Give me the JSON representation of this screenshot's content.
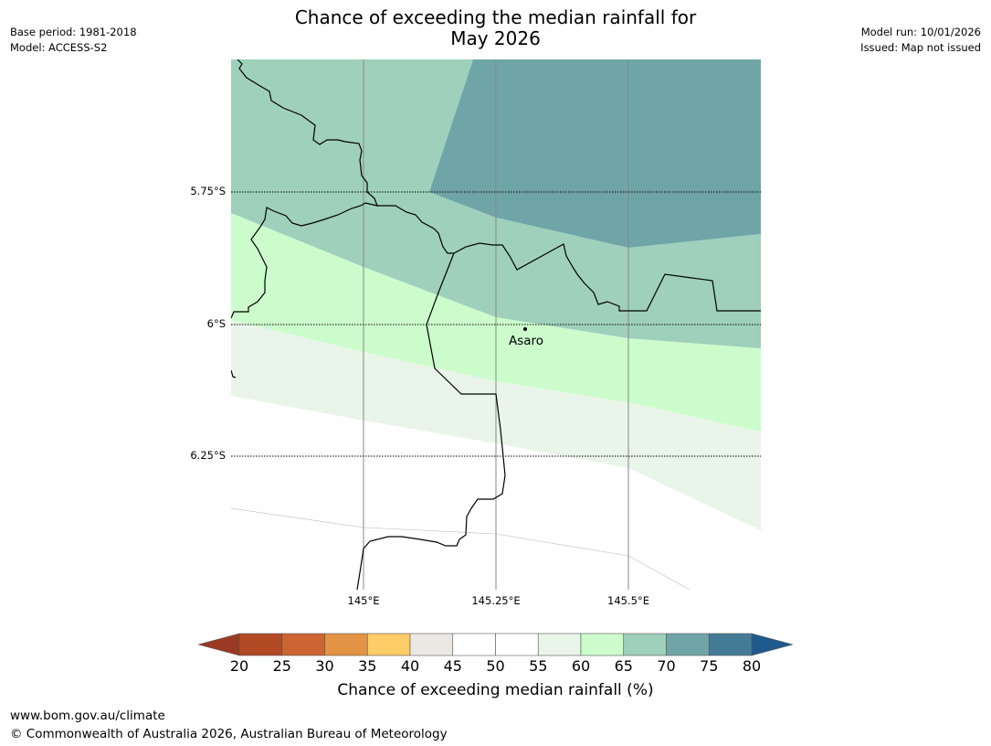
{
  "title": {
    "line1": "Chance of exceeding the median rainfall for",
    "line2": "May 2026"
  },
  "meta_left": {
    "base_period": "Base period: 1981-2018",
    "model": "Model: ACCESS-S2"
  },
  "meta_right": {
    "model_run": "Model run: 10/01/2026",
    "issued": "Issued: Map not issued"
  },
  "map": {
    "lat_labels": [
      "5.75°S",
      "6°S",
      "6.25°S"
    ],
    "lon_labels": [
      "145°E",
      "145.25°E",
      "145.5°E"
    ],
    "place": {
      "name": "Asaro"
    }
  },
  "colorbar": {
    "title": "Chance of exceeding median rainfall (%)",
    "ticks": [
      "20",
      "25",
      "30",
      "35",
      "40",
      "45",
      "50",
      "55",
      "60",
      "65",
      "70",
      "75",
      "80"
    ],
    "under_color": "#9b3a24",
    "over_color": "#1e5a8c",
    "colors": [
      "#b34a26",
      "#cc6433",
      "#e29444",
      "#fecc66",
      "#ebe8e4",
      "#ffffff",
      "#ffffff",
      "#e9f5e8",
      "#ccfccc",
      "#9ed0bb",
      "#70a5a8",
      "#437b97"
    ]
  },
  "footer": {
    "url": "www.bom.gov.au/climate",
    "copyright": "© Commonwealth of Australia 2026, Australian Bureau of Meteorology"
  }
}
